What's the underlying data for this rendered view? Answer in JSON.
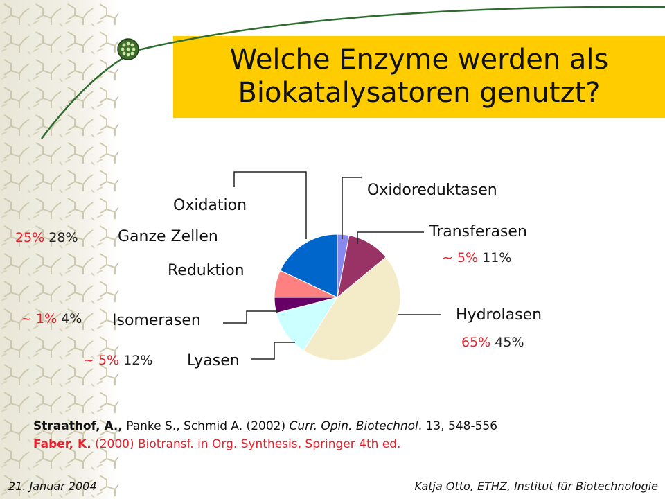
{
  "slide": {
    "title_line1": "Welche Enzyme werden als",
    "title_line2": "Biokatalysatoren genutzt?",
    "colors": {
      "accent": "#ffcc00",
      "highlight": "#e8202a",
      "swoosh": "#2e6b2e"
    },
    "icons": {
      "logo": "green-dots-badge-icon",
      "decor": "molecule-pattern"
    }
  },
  "chart_data": {
    "type": "pie",
    "slices": [
      {
        "name": "Oxidoreduktasen",
        "value": 3,
        "color": "#8888ee"
      },
      {
        "name": "Transferasen",
        "value": 11,
        "color": "#993366"
      },
      {
        "name": "Hydrolasen",
        "value": 45,
        "color": "#f4ecc8"
      },
      {
        "name": "Lyasen",
        "value": 12,
        "color": "#ccffff"
      },
      {
        "name": "Isomerasen",
        "value": 4,
        "color": "#660066"
      },
      {
        "name": "Reduktion",
        "value": 7,
        "color": "#ff8080"
      },
      {
        "name": "Oxidation",
        "value": 18,
        "color": "#0066cc"
      }
    ]
  },
  "labels": {
    "oxidoreduktasen": "Oxidoreduktasen",
    "transferasen": "Transferasen",
    "transferasen_pct_a": "~ 5%",
    "transferasen_pct_b": "11%",
    "hydrolasen": "Hydrolasen",
    "hydrolasen_pct_a": "65%",
    "hydrolasen_pct_b": "45%",
    "oxidation": "Oxidation",
    "ganze_zellen": "Ganze Zellen",
    "ganze_zellen_pct_a": "25%",
    "ganze_zellen_pct_b": "28%",
    "reduktion": "Reduktion",
    "isomerasen": "Isomerasen",
    "isomerasen_pct_a": "~ 1%",
    "isomerasen_pct_b": "4%",
    "lyasen": "Lyasen",
    "lyasen_pct_a": "~ 5%",
    "lyasen_pct_b": "12%"
  },
  "references": {
    "ref1_authors": "Straathof, A.,",
    "ref1_rest": " Panke S., Schmid A. (2002) ",
    "ref1_journal": "Curr. Opin. Biotechnol",
    "ref1_end": ". 13, 548-556",
    "ref2_author": "Faber, K.",
    "ref2_rest": " (2000) Biotransf. in Org. Synthesis, Springer 4th ed."
  },
  "footer": {
    "date": "21. Januar 2004",
    "author": "Katja Otto, ETHZ, Institut für Biotechnologie"
  }
}
